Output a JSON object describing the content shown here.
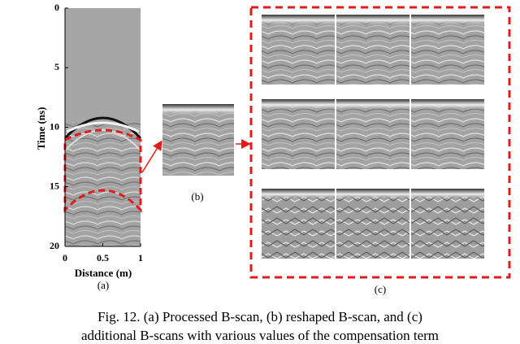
{
  "figure": {
    "panel_a": {
      "y_label": "Time (ns)",
      "x_label": "Distance (m)",
      "y_ticks": [
        "0",
        "5",
        "10",
        "15",
        "20"
      ],
      "x_ticks": [
        "0",
        "0.5",
        "1"
      ],
      "caption": "(a)"
    },
    "panel_b": {
      "caption": "(b)"
    },
    "panel_c": {
      "caption": "(c)"
    },
    "caption_lines": [
      "Fig. 12. (a) Processed B-scan, (b) reshaped B-scan, and (c)",
      "additional B-scans with various values of the compensation term"
    ]
  }
}
